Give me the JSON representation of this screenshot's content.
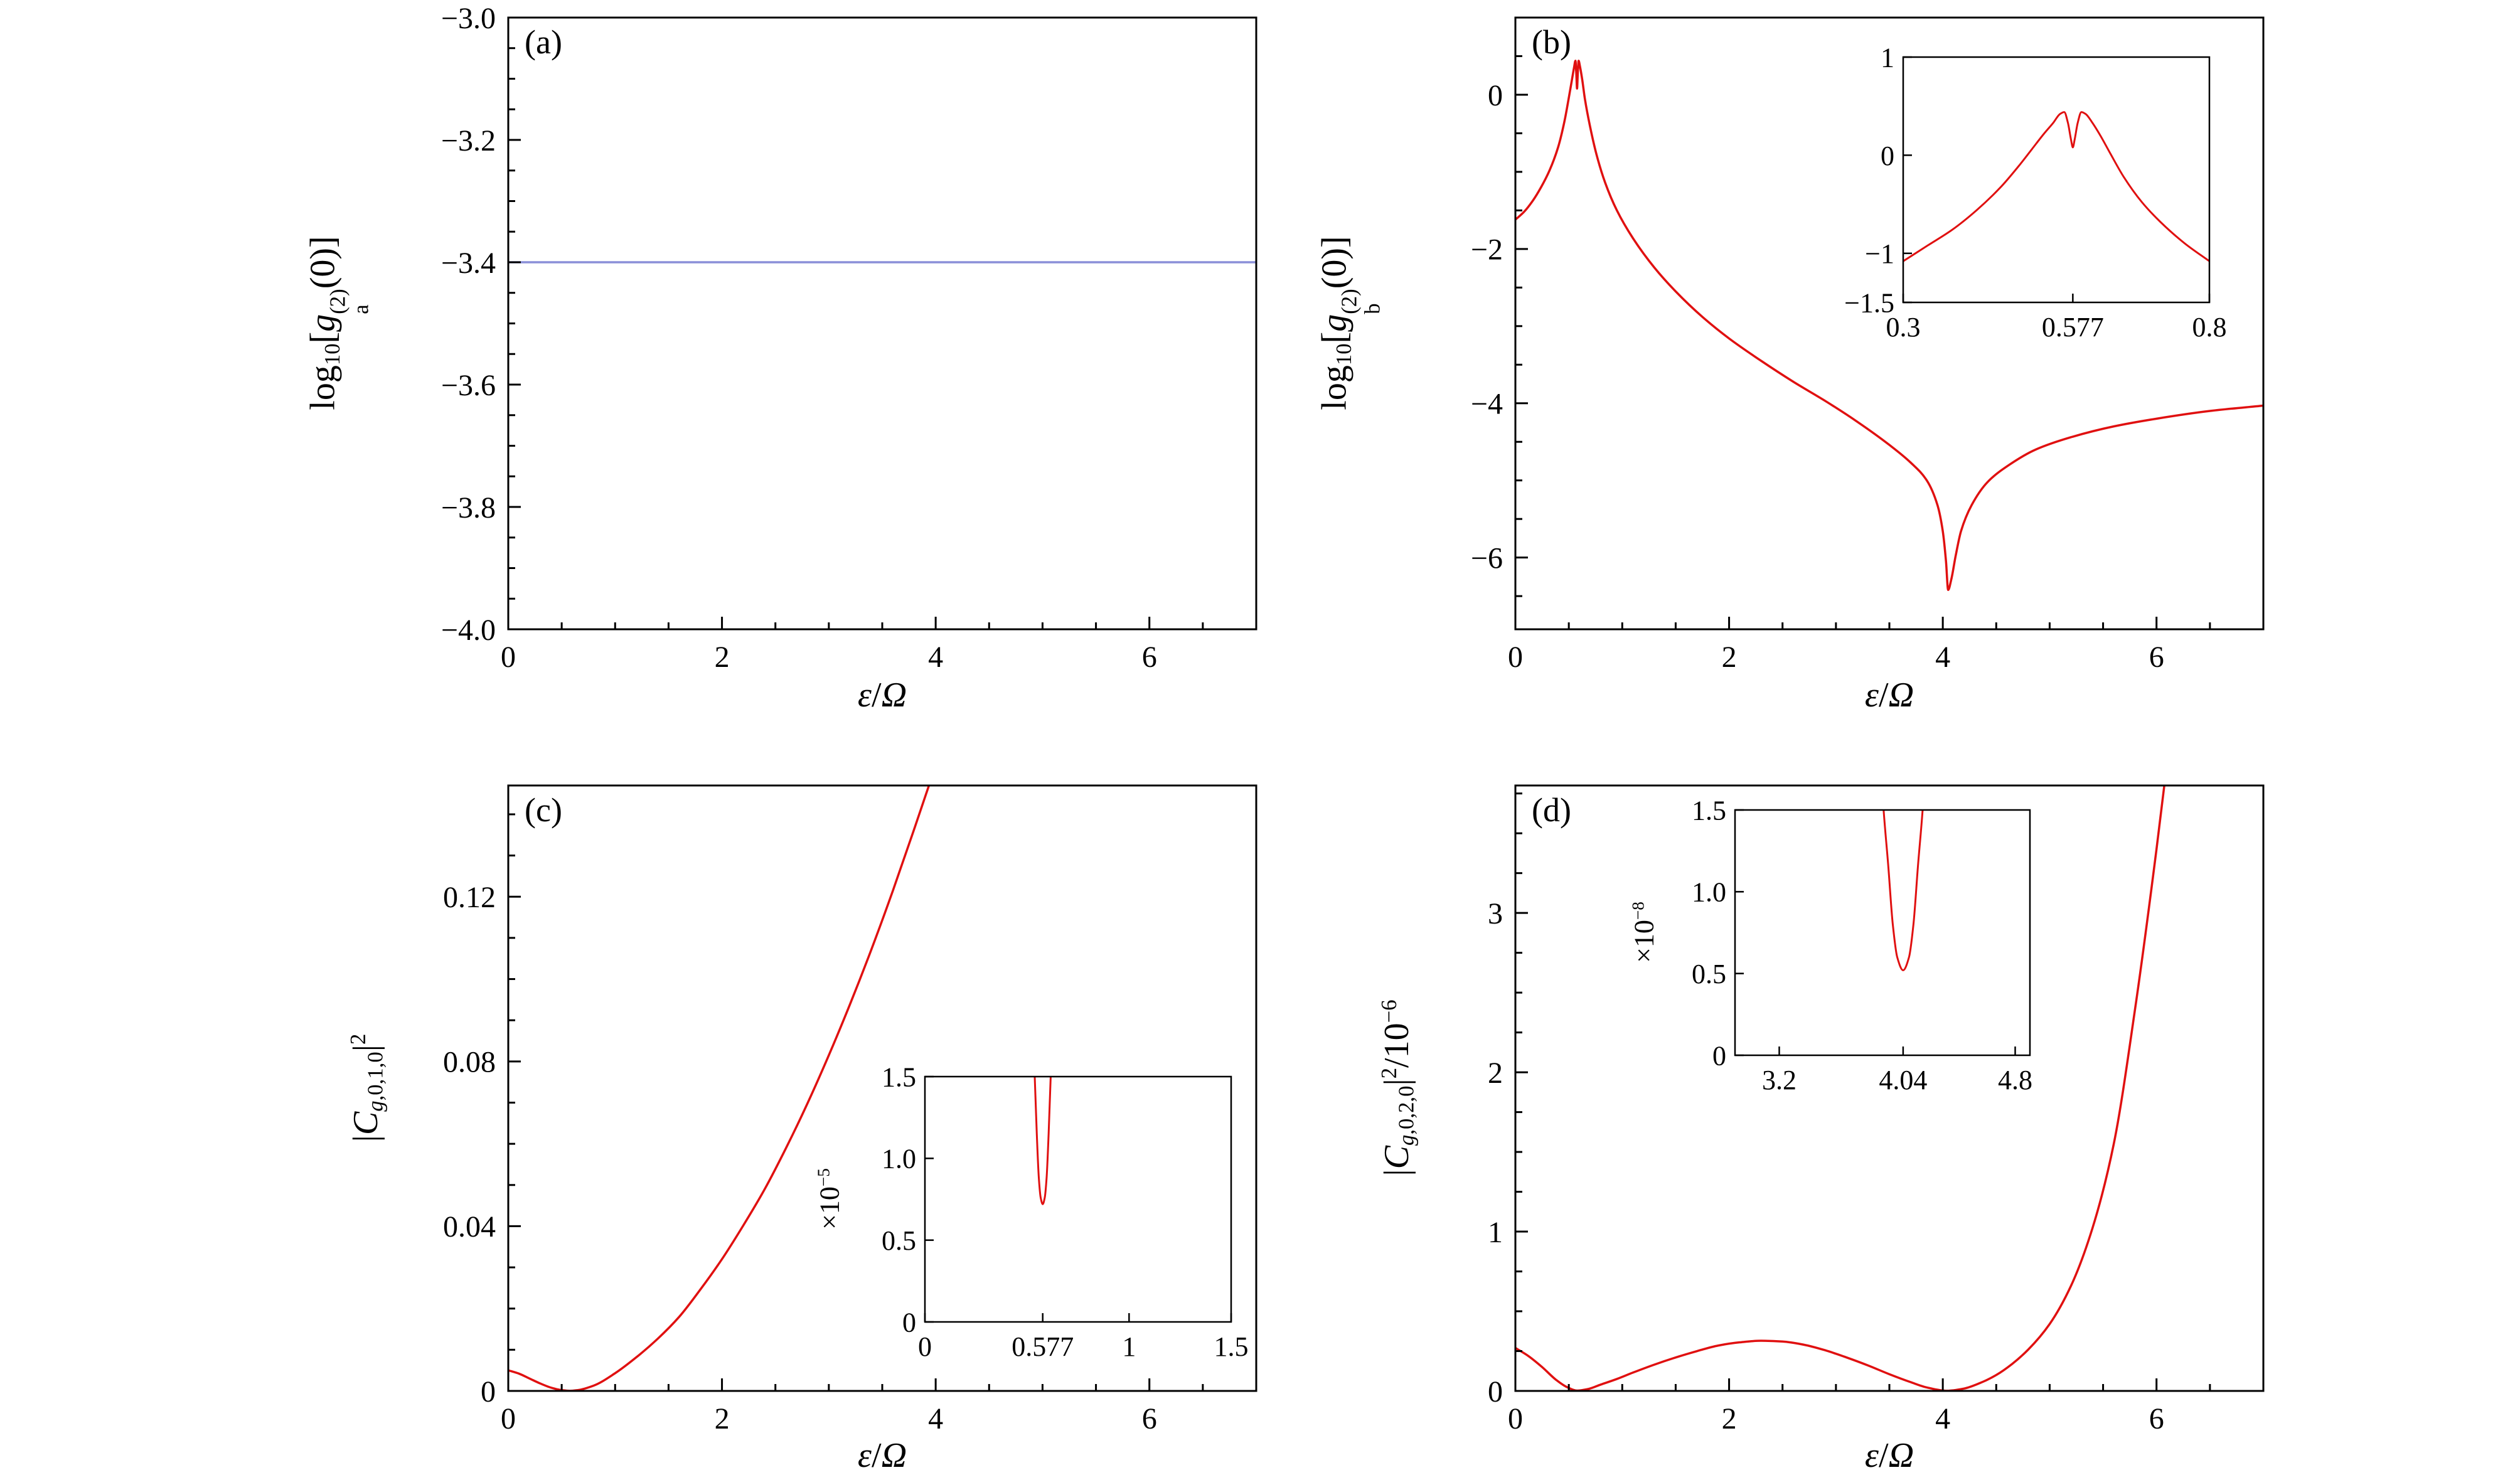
{
  "figure": {
    "background": "#ffffff",
    "curve_color_red": "#e01010",
    "curve_color_blue": "#8a8fd8",
    "axis_color": "#000000"
  },
  "chart_data": [
    {
      "id": "a",
      "type": "line",
      "letter": "(a)",
      "xlabel": "ε/Ω",
      "xlabel_math": "*ε*/*Ω*",
      "ylabel": "log10[g_a^(2)(0)]",
      "ylabel_math": "log_{10}[*g*_{a}^{(2)}(0)]",
      "xlim": [
        0,
        7
      ],
      "ylim": [
        -4,
        -3
      ],
      "xticks": {
        "values": [
          0,
          2,
          4,
          6
        ],
        "labels": [
          "0",
          "2",
          "4",
          "6"
        ],
        "minor_step": 0.5
      },
      "yticks": {
        "values": [
          -3,
          -3.2,
          -3.4,
          -3.6,
          -3.8,
          -4
        ],
        "labels": [
          "−3.0",
          "−3.2",
          "−3.4",
          "−3.6",
          "−3.8",
          "−4.0"
        ],
        "minor_step": 0.05
      },
      "grid": false,
      "series": [
        {
          "name": "g2a-line",
          "color": "#8a8fd8",
          "points": [
            [
              0,
              -3.4
            ],
            [
              7,
              -3.4
            ]
          ]
        }
      ]
    },
    {
      "id": "b",
      "type": "line",
      "letter": "(b)",
      "xlabel": "ε/Ω",
      "xlabel_math": "*ε*/*Ω*",
      "ylabel": "log10[g_b^(2)(0)]",
      "ylabel_math": "log_{10}[*g*_{b}^{(2)}(0)]",
      "xlim": [
        0,
        7
      ],
      "ylim": [
        -6.93,
        1.0
      ],
      "xticks": {
        "values": [
          0,
          2,
          4,
          6
        ],
        "labels": [
          "0",
          "2",
          "4",
          "6"
        ],
        "minor_step": 0.5
      },
      "yticks": {
        "values": [
          0,
          -2,
          -4,
          -6
        ],
        "labels": [
          "0",
          "−2",
          "−4",
          "−6"
        ],
        "minor_step": 0.5
      },
      "grid": false,
      "series": [
        {
          "name": "g2b-curve",
          "color": "#e01010",
          "points": [
            [
              0,
              -1.62
            ],
            [
              0.08,
              -1.52
            ],
            [
              0.16,
              -1.38
            ],
            [
              0.24,
              -1.2
            ],
            [
              0.32,
              -0.98
            ],
            [
              0.4,
              -0.68
            ],
            [
              0.46,
              -0.34
            ],
            [
              0.5,
              -0.04
            ],
            [
              0.53,
              0.2
            ],
            [
              0.55,
              0.36
            ],
            [
              0.562,
              0.44
            ],
            [
              0.57,
              0.28
            ],
            [
              0.577,
              0.08
            ],
            [
              0.584,
              0.28
            ],
            [
              0.592,
              0.44
            ],
            [
              0.604,
              0.37
            ],
            [
              0.625,
              0.2
            ],
            [
              0.65,
              -0.05
            ],
            [
              0.7,
              -0.42
            ],
            [
              0.76,
              -0.78
            ],
            [
              0.84,
              -1.14
            ],
            [
              0.95,
              -1.5
            ],
            [
              1.1,
              -1.86
            ],
            [
              1.3,
              -2.24
            ],
            [
              1.5,
              -2.55
            ],
            [
              1.75,
              -2.88
            ],
            [
              2,
              -3.16
            ],
            [
              2.3,
              -3.45
            ],
            [
              2.6,
              -3.72
            ],
            [
              2.9,
              -3.97
            ],
            [
              3.2,
              -4.24
            ],
            [
              3.5,
              -4.54
            ],
            [
              3.7,
              -4.77
            ],
            [
              3.85,
              -5.0
            ],
            [
              3.95,
              -5.32
            ],
            [
              4.0,
              -5.66
            ],
            [
              4.03,
              -6.05
            ],
            [
              4.05,
              -6.42
            ],
            [
              4.08,
              -6.28
            ],
            [
              4.12,
              -5.98
            ],
            [
              4.17,
              -5.66
            ],
            [
              4.27,
              -5.32
            ],
            [
              4.42,
              -5.02
            ],
            [
              4.62,
              -4.8
            ],
            [
              4.87,
              -4.6
            ],
            [
              5.2,
              -4.44
            ],
            [
              5.6,
              -4.3
            ],
            [
              6.0,
              -4.2
            ],
            [
              6.5,
              -4.1
            ],
            [
              7.0,
              -4.03
            ]
          ]
        }
      ],
      "inset": {
        "xlim": [
          0.3,
          0.8
        ],
        "ylim": [
          -1.5,
          1
        ],
        "xticks": {
          "values": [
            0.3,
            0.577,
            0.8
          ],
          "labels": [
            "0.3",
            "0.577",
            "0.8"
          ]
        },
        "yticks": {
          "values": [
            1,
            0,
            -1,
            -1.5
          ],
          "labels": [
            "1",
            "0",
            "−1",
            "−1.5"
          ]
        },
        "series": [
          {
            "name": "g2b-inset",
            "color": "#e01010",
            "points": [
              [
                0.3,
                -1.08
              ],
              [
                0.34,
                -0.92
              ],
              [
                0.38,
                -0.76
              ],
              [
                0.42,
                -0.56
              ],
              [
                0.46,
                -0.32
              ],
              [
                0.49,
                -0.1
              ],
              [
                0.51,
                0.06
              ],
              [
                0.53,
                0.22
              ],
              [
                0.545,
                0.33
              ],
              [
                0.556,
                0.42
              ],
              [
                0.563,
                0.44
              ],
              [
                0.569,
                0.33
              ],
              [
                0.574,
                0.16
              ],
              [
                0.577,
                0.08
              ],
              [
                0.58,
                0.16
              ],
              [
                0.585,
                0.33
              ],
              [
                0.591,
                0.44
              ],
              [
                0.598,
                0.42
              ],
              [
                0.609,
                0.33
              ],
              [
                0.622,
                0.2
              ],
              [
                0.638,
                0.02
              ],
              [
                0.66,
                -0.22
              ],
              [
                0.69,
                -0.48
              ],
              [
                0.72,
                -0.68
              ],
              [
                0.76,
                -0.9
              ],
              [
                0.8,
                -1.08
              ]
            ]
          }
        ]
      }
    },
    {
      "id": "c",
      "type": "line",
      "letter": "(c)",
      "xlabel": "ε/Ω",
      "xlabel_math": "*ε*/*Ω*",
      "ylabel": "|C_g,0,1,0|^2",
      "ylabel_math": "|*C*_{*g*,0,1,0}|^{2}",
      "xlim": [
        0,
        7
      ],
      "ylim": [
        0,
        0.147
      ],
      "xticks": {
        "values": [
          0,
          2,
          4,
          6
        ],
        "labels": [
          "0",
          "2",
          "4",
          "6"
        ],
        "minor_step": 0.5
      },
      "yticks": {
        "values": [
          0,
          0.04,
          0.08,
          0.12
        ],
        "labels": [
          "0",
          "0.04",
          "0.08",
          "0.12"
        ],
        "minor_step": 0.01
      },
      "grid": false,
      "series": [
        {
          "name": "C-g010-curve",
          "color": "#e01010",
          "points": [
            [
              0,
              0.005
            ],
            [
              0.1,
              0.0042
            ],
            [
              0.2,
              0.003
            ],
            [
              0.3,
              0.0018
            ],
            [
              0.4,
              0.0008
            ],
            [
              0.5,
              0.0002
            ],
            [
              0.577,
              2e-05
            ],
            [
              0.65,
              0.0002
            ],
            [
              0.8,
              0.0013
            ],
            [
              1.0,
              0.0043
            ],
            [
              1.2,
              0.0082
            ],
            [
              1.4,
              0.0127
            ],
            [
              1.6,
              0.018
            ],
            [
              1.8,
              0.0247
            ],
            [
              2.0,
              0.032
            ],
            [
              2.2,
              0.0402
            ],
            [
              2.4,
              0.049
            ],
            [
              2.6,
              0.059
            ],
            [
              2.8,
              0.0698
            ],
            [
              3.0,
              0.0815
            ],
            [
              3.2,
              0.094
            ],
            [
              3.4,
              0.1073
            ],
            [
              3.6,
              0.1215
            ],
            [
              3.8,
              0.1365
            ],
            [
              3.95,
              0.148
            ],
            [
              4.05,
              0.156
            ]
          ]
        }
      ],
      "inset": {
        "scale_label": "×10^−5",
        "scale_label_math": "×10^{−5}",
        "xlim": [
          0,
          1.5
        ],
        "ylim": [
          0,
          1.5
        ],
        "xticks": {
          "values": [
            0,
            0.577,
            1,
            1.5
          ],
          "labels": [
            "0",
            "0.577",
            "1",
            "1.5"
          ]
        },
        "yticks": {
          "values": [
            0,
            0.5,
            1.0,
            1.5
          ],
          "labels": [
            "0",
            "0.5",
            "1.0",
            "1.5"
          ]
        },
        "series": [
          {
            "name": "C-g010-inset",
            "color": "#e01010",
            "points": [
              [
                0.5,
                4.0
              ],
              [
                0.52,
                2.4
              ],
              [
                0.535,
                1.6
              ],
              [
                0.548,
                1.15
              ],
              [
                0.558,
                0.88
              ],
              [
                0.567,
                0.76
              ],
              [
                0.577,
                0.72
              ],
              [
                0.587,
                0.76
              ],
              [
                0.596,
                0.88
              ],
              [
                0.606,
                1.15
              ],
              [
                0.619,
                1.6
              ],
              [
                0.634,
                2.4
              ],
              [
                0.654,
                4.0
              ]
            ]
          }
        ]
      }
    },
    {
      "id": "d",
      "type": "line",
      "letter": "(d)",
      "xlabel": "ε/Ω",
      "xlabel_math": "*ε*/*Ω*",
      "ylabel": "|C_g,0,2,0|^2/10^−6",
      "ylabel_math": "|*C*_{*g*,0,2,0}|^{2}/10^{−6}",
      "xlim": [
        0,
        7
      ],
      "ylim": [
        0,
        3.8
      ],
      "xticks": {
        "values": [
          0,
          2,
          4,
          6
        ],
        "labels": [
          "0",
          "2",
          "4",
          "6"
        ],
        "minor_step": 0.5
      },
      "yticks": {
        "values": [
          0,
          1,
          2,
          3
        ],
        "labels": [
          "0",
          "1",
          "2",
          "3"
        ],
        "minor_step": 0.25
      },
      "grid": false,
      "series": [
        {
          "name": "C-g020-curve",
          "color": "#e01010",
          "points": [
            [
              0,
              0.27
            ],
            [
              0.12,
              0.22
            ],
            [
              0.25,
              0.15
            ],
            [
              0.38,
              0.07
            ],
            [
              0.48,
              0.025
            ],
            [
              0.577,
              0.002
            ],
            [
              0.68,
              0.012
            ],
            [
              0.8,
              0.04
            ],
            [
              0.95,
              0.075
            ],
            [
              1.1,
              0.115
            ],
            [
              1.3,
              0.165
            ],
            [
              1.5,
              0.21
            ],
            [
              1.7,
              0.25
            ],
            [
              1.9,
              0.285
            ],
            [
              2.1,
              0.305
            ],
            [
              2.3,
              0.315
            ],
            [
              2.5,
              0.31
            ],
            [
              2.7,
              0.29
            ],
            [
              2.9,
              0.255
            ],
            [
              3.1,
              0.21
            ],
            [
              3.3,
              0.16
            ],
            [
              3.5,
              0.105
            ],
            [
              3.7,
              0.055
            ],
            [
              3.85,
              0.022
            ],
            [
              4.04,
              0.001
            ],
            [
              4.2,
              0.015
            ],
            [
              4.35,
              0.05
            ],
            [
              4.5,
              0.1
            ],
            [
              4.65,
              0.17
            ],
            [
              4.8,
              0.26
            ],
            [
              5.0,
              0.42
            ],
            [
              5.2,
              0.66
            ],
            [
              5.4,
              1.02
            ],
            [
              5.6,
              1.55
            ],
            [
              5.8,
              2.4
            ],
            [
              6.0,
              3.4
            ],
            [
              6.1,
              3.95
            ]
          ]
        }
      ],
      "inset": {
        "scale_label": "×10^−8",
        "scale_label_math": "×10^{−8}",
        "xlim": [
          2.9,
          4.9
        ],
        "ylim": [
          0,
          1.5
        ],
        "xticks": {
          "values": [
            3.2,
            4.04,
            4.8
          ],
          "labels": [
            "3.2",
            "4.04",
            "4.8"
          ]
        },
        "yticks": {
          "values": [
            0,
            0.5,
            1.0,
            1.5
          ],
          "labels": [
            "0",
            "0.5",
            "1.0",
            "1.5"
          ]
        },
        "series": [
          {
            "name": "C-g020-inset",
            "color": "#e01010",
            "points": [
              [
                3.8,
                4.0
              ],
              [
                3.86,
                2.4
              ],
              [
                3.9,
                1.6
              ],
              [
                3.94,
                1.15
              ],
              [
                3.97,
                0.8
              ],
              [
                4.0,
                0.6
              ],
              [
                4.04,
                0.52
              ],
              [
                4.08,
                0.6
              ],
              [
                4.11,
                0.8
              ],
              [
                4.14,
                1.15
              ],
              [
                4.18,
                1.6
              ],
              [
                4.22,
                2.4
              ],
              [
                4.28,
                4.0
              ]
            ]
          }
        ]
      }
    }
  ]
}
